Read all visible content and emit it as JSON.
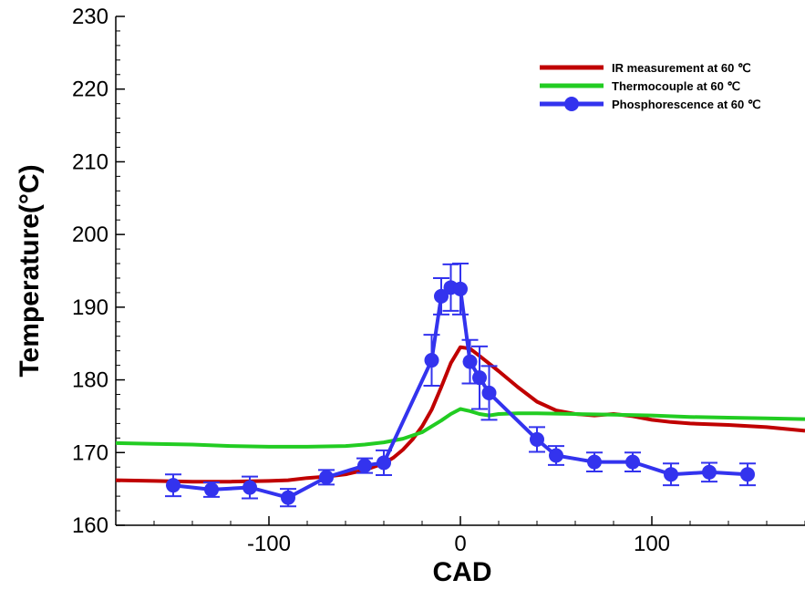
{
  "chart_data": {
    "type": "line",
    "title": "",
    "xlabel": "CAD",
    "ylabel": "Temperature(°C)",
    "xlim": [
      -180,
      180
    ],
    "ylim": [
      160,
      230
    ],
    "x_ticks": [
      -100,
      0,
      100
    ],
    "y_ticks": [
      160,
      170,
      180,
      190,
      200,
      210,
      220,
      230
    ],
    "grid": false,
    "legend_position": "top-right",
    "series": [
      {
        "name": "IR measurement at 60 ℃",
        "color": "#c00000",
        "marker": "none",
        "x": [
          -180,
          -160,
          -140,
          -120,
          -100,
          -90,
          -80,
          -70,
          -60,
          -50,
          -40,
          -35,
          -30,
          -25,
          -20,
          -15,
          -10,
          -5,
          0,
          5,
          10,
          20,
          30,
          40,
          50,
          60,
          70,
          80,
          90,
          100,
          110,
          120,
          140,
          160,
          180
        ],
        "y": [
          166.2,
          166.1,
          166.0,
          166.0,
          166.1,
          166.2,
          166.5,
          166.7,
          167.0,
          167.6,
          168.5,
          169.3,
          170.4,
          171.8,
          173.6,
          175.9,
          179.0,
          182.3,
          184.5,
          184.3,
          183.3,
          181.2,
          179.0,
          177.0,
          175.8,
          175.3,
          175.1,
          175.3,
          175.0,
          174.5,
          174.2,
          174.0,
          173.8,
          173.5,
          173.0
        ]
      },
      {
        "name": "Thermocouple at 60 ℃",
        "color": "#22cc22",
        "marker": "none",
        "x": [
          -180,
          -160,
          -140,
          -120,
          -100,
          -80,
          -60,
          -50,
          -40,
          -30,
          -20,
          -15,
          -10,
          -5,
          0,
          5,
          10,
          15,
          20,
          30,
          40,
          60,
          80,
          100,
          120,
          140,
          160,
          180
        ],
        "y": [
          171.3,
          171.2,
          171.1,
          170.9,
          170.8,
          170.8,
          170.9,
          171.1,
          171.4,
          171.9,
          172.8,
          173.6,
          174.4,
          175.3,
          176.0,
          175.7,
          175.3,
          175.1,
          175.3,
          175.4,
          175.4,
          175.3,
          175.2,
          175.1,
          174.9,
          174.8,
          174.7,
          174.6
        ]
      },
      {
        "name": "Phosphorescence at 60 ℃",
        "color": "#3333ee",
        "marker": "circle",
        "x": [
          -150,
          -130,
          -110,
          -90,
          -70,
          -50,
          -40,
          -15,
          -10,
          -5,
          0,
          5,
          10,
          15,
          40,
          50,
          70,
          90,
          110,
          130,
          150
        ],
        "y": [
          165.5,
          164.9,
          165.2,
          163.8,
          166.6,
          168.2,
          168.6,
          182.7,
          191.5,
          192.7,
          192.5,
          182.5,
          180.3,
          178.2,
          171.8,
          169.6,
          168.7,
          168.7,
          167.0,
          167.3,
          167.0
        ],
        "error": [
          1.5,
          1.0,
          1.5,
          1.2,
          1.0,
          1.0,
          1.7,
          3.5,
          2.5,
          3.2,
          3.5,
          3.0,
          4.3,
          3.7,
          1.7,
          1.3,
          1.3,
          1.3,
          1.5,
          1.3,
          1.5
        ]
      }
    ]
  }
}
